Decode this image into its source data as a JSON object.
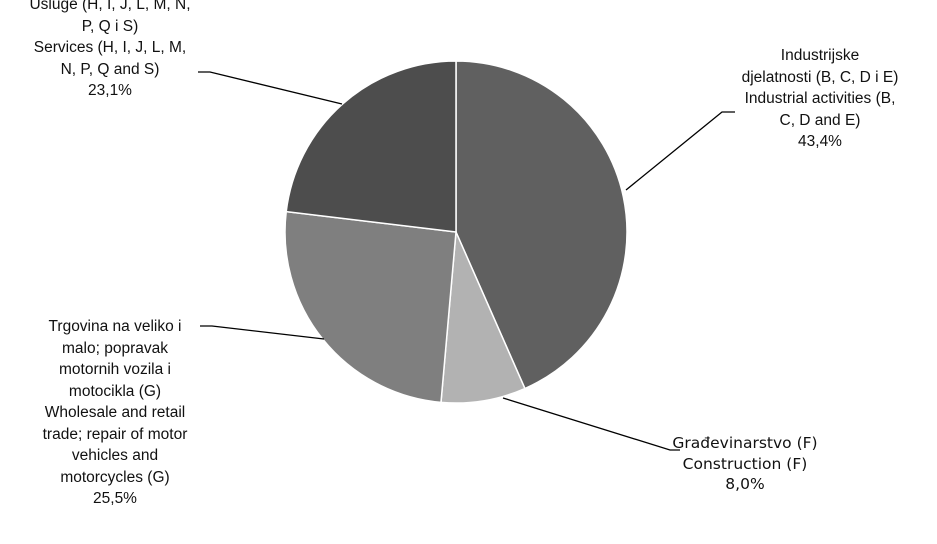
{
  "chart_data": {
    "type": "pie",
    "title": "",
    "categories": [
      "Industrijske djelatnosti (B, C, D i E) Industrial activities (B, C, D and E)",
      "Građevinarstvo (F) Construction (F)",
      "Trgovina na veliko i malo; popravak motornih vozila i motocikla (G) Wholesale and retail trade; repair of motor vehicles and motorcycles (G)",
      "Usluge (H, I, J, L, M, N, P, Q i S) Services (H, I, J, L, M, N, P, Q and S)"
    ],
    "values": [
      43.4,
      8.0,
      25.5,
      23.1
    ],
    "value_labels": [
      "43,4%",
      "8,0%",
      "25,5%",
      "23,1%"
    ],
    "label_lines": [
      [
        "Industrijske",
        "djelatnosti (B, C, D i E)",
        "Industrial activities (B,",
        "C, D and E)"
      ],
      [
        "Građevinarstvo (F)",
        "Construction (F)"
      ],
      [
        "Trgovina na veliko i",
        "malo; popravak",
        "motornih vozila i",
        "motocikla  (G)",
        "Wholesale and retail",
        "trade; repair of motor",
        "vehicles and",
        "motorcycles  (G)"
      ],
      [
        "Usluge (H, I, J, L, M, N,",
        "P, Q  i S)",
        "Services (H, I, J, L, M,",
        "N, P, Q and S)"
      ]
    ],
    "colors": [
      "#606060",
      "#b2b2b2",
      "#7f7f7f",
      "#4d4d4d"
    ],
    "start_angle_deg": 0,
    "direction": "clockwise",
    "legend": "none"
  }
}
